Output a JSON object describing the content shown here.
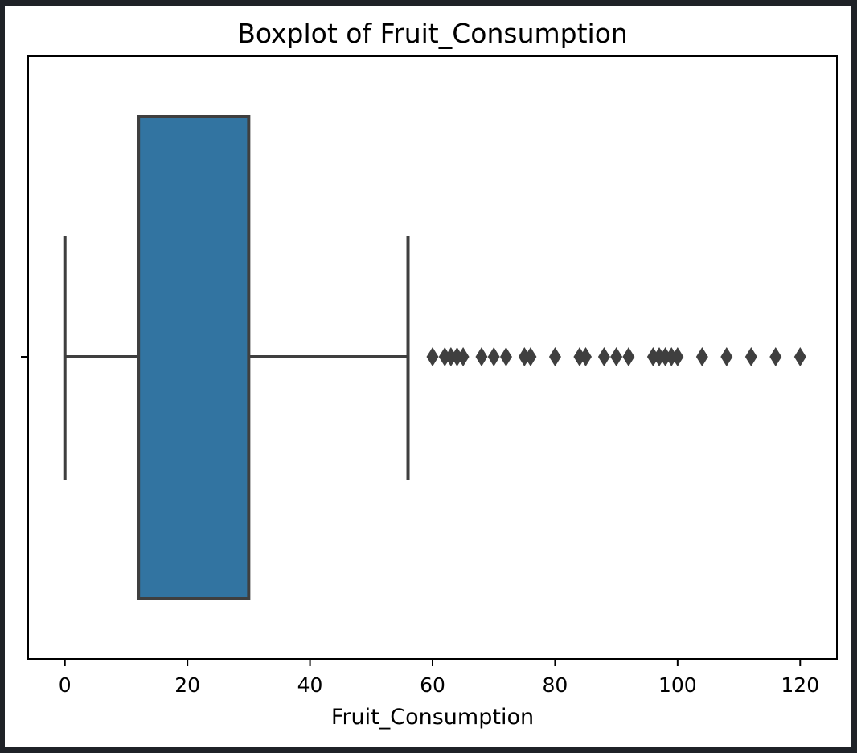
{
  "chart_data": {
    "type": "boxplot",
    "title": "Boxplot of Fruit_Consumption",
    "xlabel": "Fruit_Consumption",
    "ylabel": "",
    "orientation": "horizontal",
    "xlim": [
      -6,
      126
    ],
    "xticks": [
      0,
      20,
      40,
      60,
      80,
      100,
      120
    ],
    "grid": false,
    "box_color": "#3274a1",
    "line_color": "#3f3f3f",
    "box": {
      "whisker_low": 0,
      "q1": 12,
      "q3": 30,
      "whisker_high": 56
    },
    "outliers": [
      60,
      62,
      63,
      64,
      65,
      68,
      70,
      72,
      75,
      76,
      80,
      84,
      85,
      88,
      90,
      92,
      96,
      97,
      98,
      99,
      100,
      104,
      108,
      112,
      116,
      120
    ]
  }
}
